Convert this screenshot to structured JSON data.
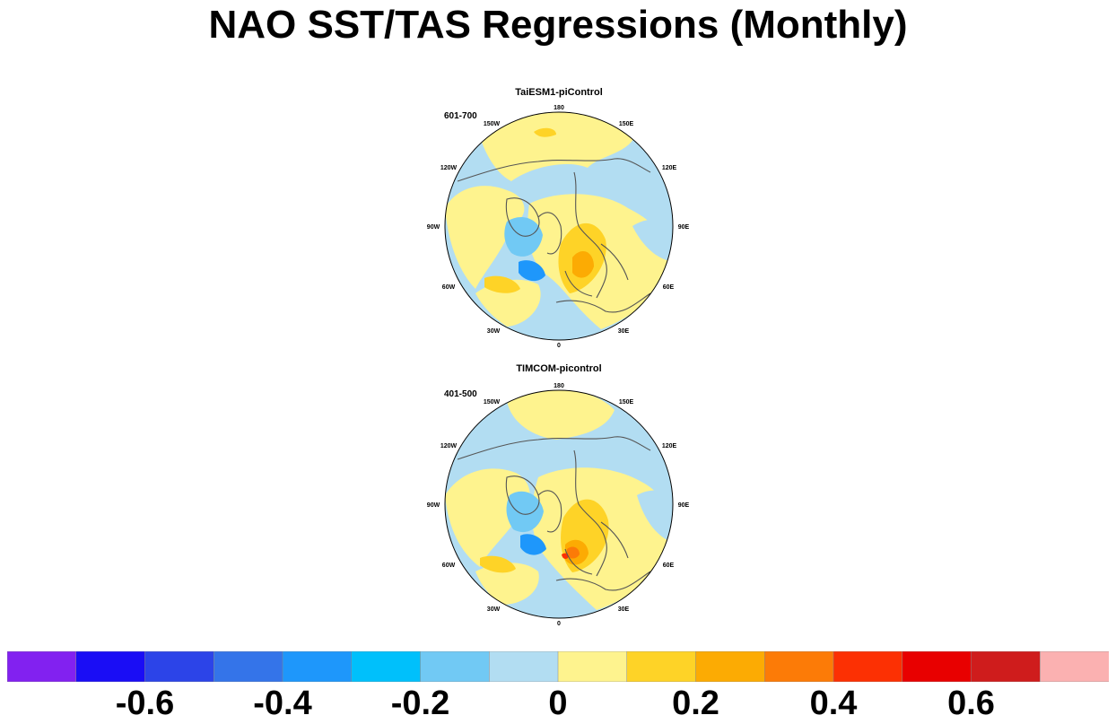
{
  "title": "NAO SST/TAS Regressions (Monthly)",
  "panels": [
    {
      "title": "TaiESM1-piControl",
      "period": "601-700",
      "longitude_labels": [
        "180",
        "150E",
        "120E",
        "90E",
        "60E",
        "30E",
        "0",
        "30W",
        "60W",
        "90W",
        "120W",
        "150W"
      ]
    },
    {
      "title": "TIMCOM-picontrol",
      "period": "401-500",
      "longitude_labels": [
        "180",
        "150E",
        "120E",
        "90E",
        "60E",
        "30E",
        "0",
        "30W",
        "60W",
        "90W",
        "120W",
        "150W"
      ]
    }
  ],
  "colorbar": {
    "colors": [
      "#8221f0",
      "#1a0df5",
      "#2c44e8",
      "#3474e9",
      "#1e97fb",
      "#00c0fb",
      "#71c9f4",
      "#b2ddf2",
      "#fef38e",
      "#fed327",
      "#fcab03",
      "#fc7b07",
      "#fc3003",
      "#e80000",
      "#cf1c1c",
      "#fbb1b1"
    ],
    "tick_labels": [
      "-0.6",
      "-0.4",
      "-0.2",
      "0",
      "0.2",
      "0.4",
      "0.6"
    ]
  },
  "map_colors": {
    "neutral_negative": "#b2ddf2",
    "weak_positive": "#fef38e",
    "moderate_positive": "#fed327",
    "strong_positive": "#fcab03",
    "light_negative": "#71c9f4",
    "mid_negative": "#1e97fb",
    "high_positive": "#fc7b07",
    "peak_positive": "#fc3003",
    "coastline": "#555555"
  }
}
